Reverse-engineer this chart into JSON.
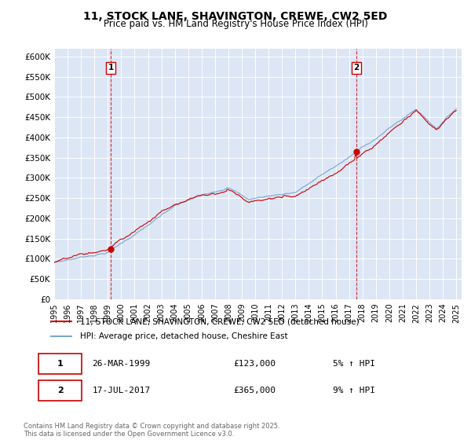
{
  "title": "11, STOCK LANE, SHAVINGTON, CREWE, CW2 5ED",
  "subtitle": "Price paid vs. HM Land Registry's House Price Index (HPI)",
  "ylim": [
    0,
    620000
  ],
  "yticks": [
    0,
    50000,
    100000,
    150000,
    200000,
    250000,
    300000,
    350000,
    400000,
    450000,
    500000,
    550000,
    600000
  ],
  "ytick_labels": [
    "£0",
    "£50K",
    "£100K",
    "£150K",
    "£200K",
    "£250K",
    "£300K",
    "£350K",
    "£400K",
    "£450K",
    "£500K",
    "£550K",
    "£600K"
  ],
  "property_color": "#cc0000",
  "hpi_color": "#7ba7cc",
  "background_color": "#dce6f5",
  "legend_label_property": "11, STOCK LANE, SHAVINGTON, CREWE, CW2 5ED (detached house)",
  "legend_label_hpi": "HPI: Average price, detached house, Cheshire East",
  "sale1_date": "26-MAR-1999",
  "sale1_price": "£123,000",
  "sale1_pct": "5% ↑ HPI",
  "sale1_year": 1999.23,
  "sale2_date": "17-JUL-2017",
  "sale2_price": "£365,000",
  "sale2_pct": "9% ↑ HPI",
  "sale2_year": 2017.54,
  "sale1_value": 123000,
  "sale2_value": 365000,
  "footnote": "Contains HM Land Registry data © Crown copyright and database right 2025.\nThis data is licensed under the Open Government Licence v3.0."
}
